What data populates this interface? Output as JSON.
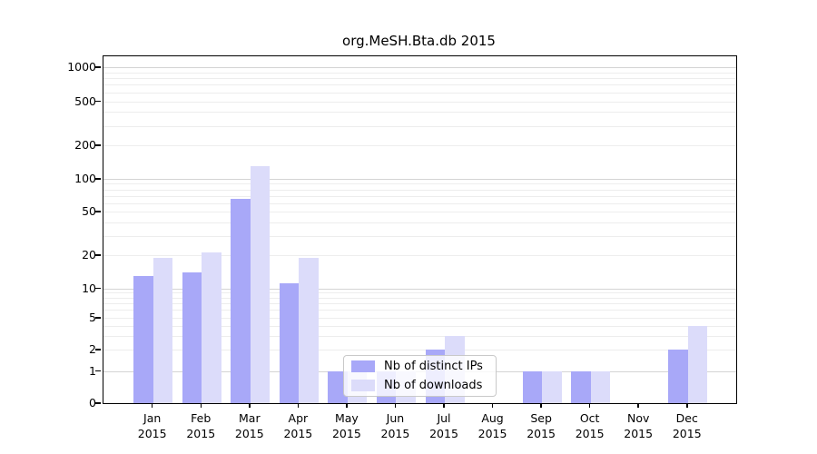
{
  "chart_data": {
    "type": "bar",
    "title": "org.MeSH.Bta.db 2015",
    "categories": [
      "Jan 2015",
      "Feb 2015",
      "Mar 2015",
      "Apr 2015",
      "May 2015",
      "Jun 2015",
      "Jul 2015",
      "Aug 2015",
      "Sep 2015",
      "Oct 2015",
      "Nov 2015",
      "Dec 2015"
    ],
    "series": [
      {
        "name": "Nb of distinct IPs",
        "color": "#a8a8f8",
        "values": [
          13,
          14,
          66,
          11,
          1,
          1,
          2,
          0,
          1,
          1,
          0,
          2
        ]
      },
      {
        "name": "Nb of downloads",
        "color": "#dcdcfa",
        "values": [
          19,
          21,
          130,
          19,
          1,
          1,
          3,
          0,
          1,
          1,
          0,
          4
        ]
      }
    ],
    "y_ticks": [
      0,
      1,
      2,
      5,
      10,
      20,
      50,
      100,
      200,
      500,
      1000
    ],
    "ylim": [
      0,
      1000
    ],
    "y_scale": "log-like",
    "xlabel": "",
    "ylabel": "",
    "grid": "horizontal",
    "legend_position": "inside-bottom-center"
  },
  "colors": {
    "bar_distinct_ips": "#a8a8f8",
    "bar_downloads": "#dcdcfa",
    "grid_minor": "#ededed",
    "grid_major": "#d4d4d4",
    "axis": "#000000",
    "legend_border": "#c9c9c9"
  }
}
